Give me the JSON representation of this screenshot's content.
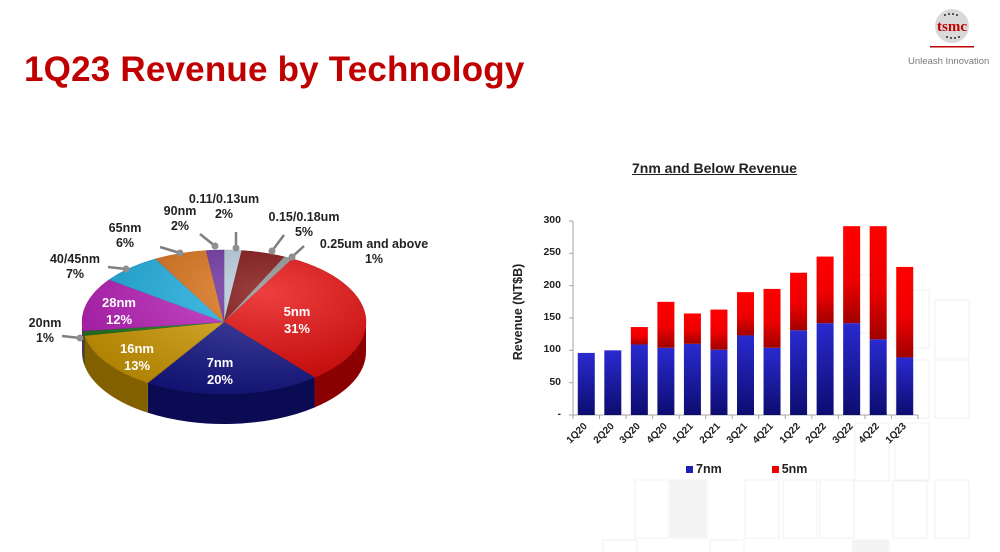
{
  "header": {
    "title": "1Q23 Revenue by Technology",
    "logo_text": "tsmc",
    "tagline": "Unleash Innovation"
  },
  "colors": {
    "title_red": "#c00000",
    "bar_7nm": "#1f1fb0",
    "bar_5nm": "#ee0000"
  },
  "chart_data": [
    {
      "type": "pie",
      "title": "1Q23 Revenue by Technology",
      "categories": [
        "0.11/0.13um",
        "0.15/0.18um",
        "0.25um and above",
        "5nm",
        "7nm",
        "16nm",
        "20nm",
        "28nm",
        "40/45nm",
        "65nm",
        "90nm"
      ],
      "values": [
        2,
        5,
        1,
        31,
        20,
        13,
        1,
        12,
        7,
        6,
        2
      ],
      "labels": [
        "2%",
        "5%",
        "1%",
        "31%",
        "20%",
        "13%",
        "1%",
        "12%",
        "7%",
        "6%",
        "2%"
      ],
      "colors": [
        "#b8cde0",
        "#7a0000",
        "#8c8c8c",
        "#e80000",
        "#12128a",
        "#d9a000",
        "#1a7a1a",
        "#c21ec2",
        "#19b4ea",
        "#e07010",
        "#6a2aa0"
      ],
      "style": "3d-exploded-none"
    },
    {
      "type": "bar",
      "stacked": true,
      "title": "7nm and Below Revenue",
      "xlabel": "",
      "ylabel": "Revenue (NT$B)",
      "ylim": [
        0,
        300
      ],
      "yticks": [
        "-",
        "50",
        "100",
        "150",
        "200",
        "250",
        "300"
      ],
      "categories": [
        "1Q20",
        "2Q20",
        "3Q20",
        "4Q20",
        "1Q21",
        "2Q21",
        "3Q21",
        "4Q21",
        "1Q22",
        "2Q22",
        "3Q22",
        "4Q22",
        "1Q23"
      ],
      "series": [
        {
          "name": "7nm",
          "color": "#1f1fb0",
          "values": [
            96,
            100,
            109,
            104,
            110,
            101,
            123,
            104,
            131,
            142,
            142,
            117,
            89
          ]
        },
        {
          "name": "5nm",
          "color": "#ee0000",
          "values": [
            0,
            0,
            27,
            71,
            47,
            62,
            67,
            91,
            89,
            103,
            150,
            175,
            140
          ]
        }
      ],
      "legend_position": "bottom",
      "grid": false
    }
  ],
  "pie_labels": [
    {
      "name": "0.11/0.13um",
      "pct": "2%"
    },
    {
      "name": "0.15/0.18um",
      "pct": "5%"
    },
    {
      "name": "0.25um and above",
      "pct": "1%"
    },
    {
      "name": "5nm",
      "pct": "31%"
    },
    {
      "name": "7nm",
      "pct": "20%"
    },
    {
      "name": "16nm",
      "pct": "13%"
    },
    {
      "name": "20nm",
      "pct": "1%"
    },
    {
      "name": "28nm",
      "pct": "12%"
    },
    {
      "name": "40/45nm",
      "pct": "7%"
    },
    {
      "name": "65nm",
      "pct": "6%"
    },
    {
      "name": "90nm",
      "pct": "2%"
    }
  ],
  "bar_chart": {
    "title": "7nm and Below Revenue",
    "ylabel": "Revenue (NT$B)",
    "legend": [
      {
        "label": "7nm",
        "color": "#1f1fb0"
      },
      {
        "label": "5nm",
        "color": "#ee0000"
      }
    ]
  }
}
